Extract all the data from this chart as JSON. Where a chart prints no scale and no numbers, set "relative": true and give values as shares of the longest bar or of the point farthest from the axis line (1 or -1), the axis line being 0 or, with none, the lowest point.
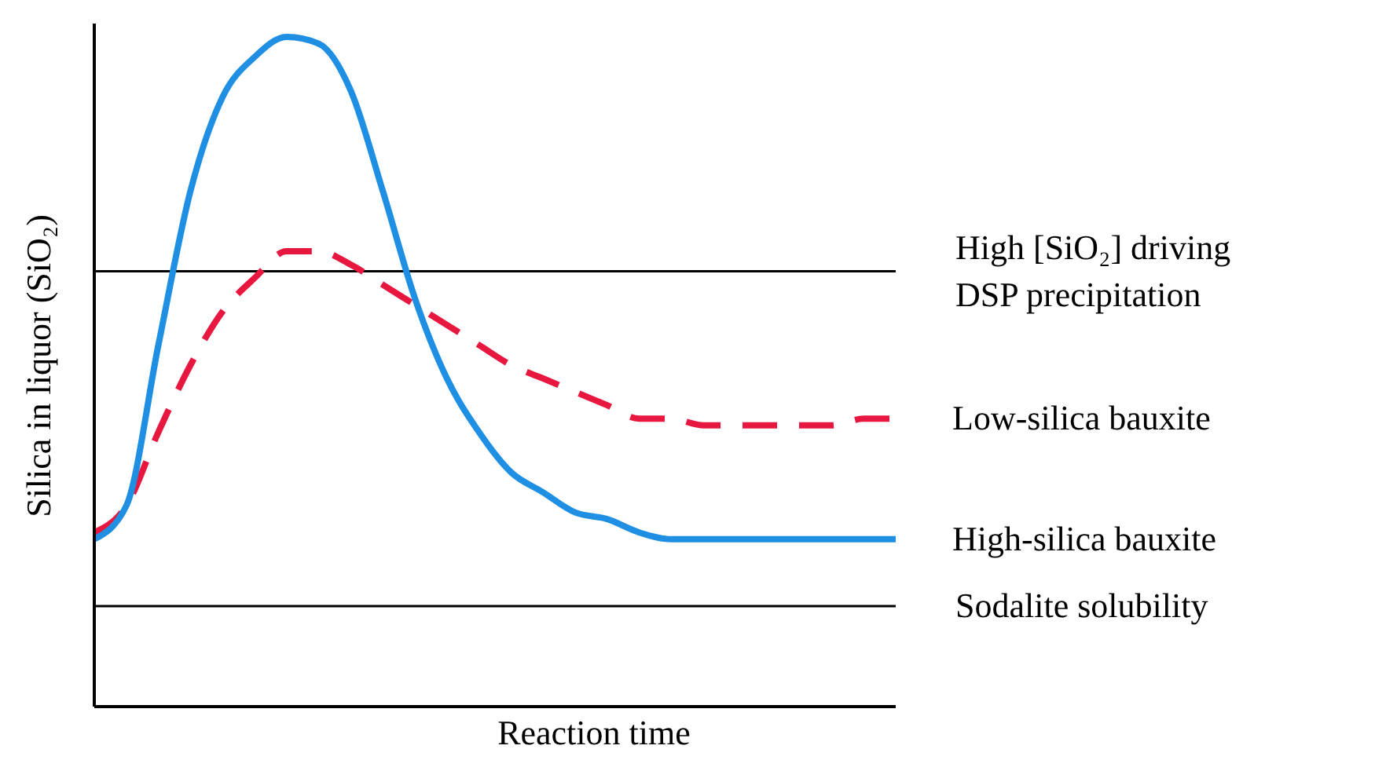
{
  "chart_data": {
    "type": "line",
    "relative": true,
    "xlabel": "Reaction time",
    "ylabel": "Silica in liquor (SiO₂)",
    "categories": [
      null,
      null,
      null,
      null,
      null,
      null,
      null,
      null,
      null,
      null,
      null,
      null,
      null,
      null,
      null,
      null,
      null,
      null,
      null,
      null,
      null,
      null,
      null,
      null,
      null,
      null
    ],
    "series": [
      {
        "name": "Low-silica bauxite",
        "color": "#e8173f",
        "line_style": "dashed",
        "values": [
          0.26,
          0.3,
          0.41,
          0.51,
          0.59,
          0.64,
          0.68,
          0.68,
          0.66,
          0.63,
          0.6,
          0.57,
          0.54,
          0.51,
          0.49,
          0.47,
          0.45,
          0.43,
          0.43,
          0.42,
          0.42,
          0.42,
          0.42,
          0.42,
          0.43,
          0.43
        ]
      },
      {
        "name": "High-silica bauxite",
        "color": "#1e8fe3",
        "line_style": "solid",
        "values": [
          0.25,
          0.3,
          0.54,
          0.77,
          0.91,
          0.97,
          1.0,
          0.99,
          0.92,
          0.77,
          0.61,
          0.49,
          0.41,
          0.35,
          0.32,
          0.29,
          0.28,
          0.26,
          0.25,
          0.25,
          0.25,
          0.25,
          0.25,
          0.25,
          0.25,
          0.25
        ]
      }
    ],
    "ref_lines": [
      {
        "axis": "y",
        "value": 0.65,
        "label": "High [SiO₂] driving DSP precipitation",
        "color": "#000000"
      },
      {
        "axis": "y",
        "value": 0.15,
        "label": "Sodalite solubility",
        "color": "#000000"
      }
    ],
    "marker": "none",
    "grid": false,
    "legend": false
  }
}
